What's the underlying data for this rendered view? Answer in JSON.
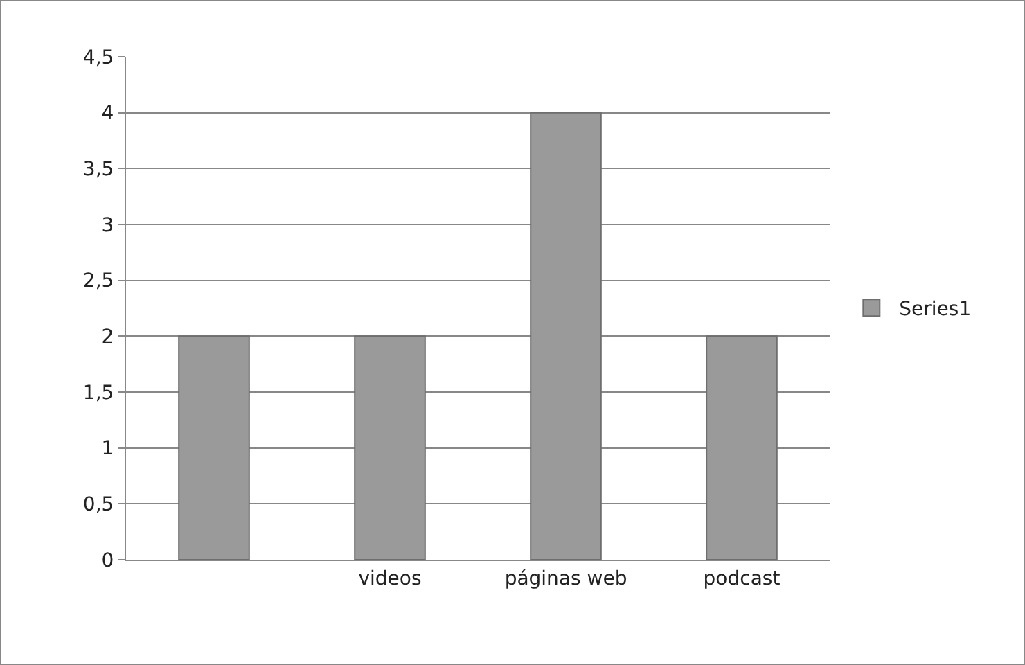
{
  "chart_data": {
    "type": "bar",
    "categories": [
      null,
      "videos",
      "páginas web",
      "podcast"
    ],
    "series": [
      {
        "name": "Series1",
        "color": "#9a9a9a",
        "values": [
          2,
          2,
          4,
          2
        ]
      }
    ],
    "ylim": [
      0,
      4.5
    ],
    "yticks": [
      0,
      {
        "value": 0.5,
        "label": "0,5"
      },
      1,
      {
        "value": 1.5,
        "label": "1,5"
      },
      2,
      {
        "value": 2.5,
        "label": "2,5"
      },
      3,
      {
        "value": 3.5,
        "label": "3,5"
      },
      4,
      {
        "value": 4.5,
        "label": "4,5"
      }
    ],
    "grid": "y",
    "legend": "right"
  }
}
